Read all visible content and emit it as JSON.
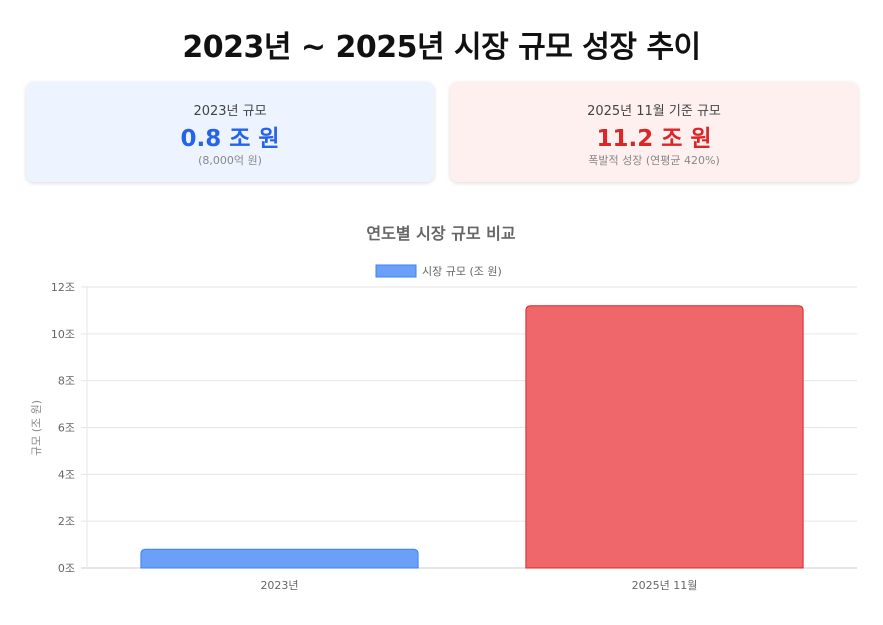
{
  "page": {
    "title": "2023년 ~ 2025년 시장 규모 성장 추이"
  },
  "cards": [
    {
      "label": "2023년 규모",
      "value": "0.8 조 원",
      "sub": "(8,000억 원)",
      "accent": "#2563eb",
      "background": "#eef4ff"
    },
    {
      "label": "2025년 11월 기준 규모",
      "value": "11.2 조 원",
      "sub": "폭발적 성장 (연평균 420%)",
      "accent": "#dc2626",
      "background": "#fff0f0"
    }
  ],
  "chart_data": {
    "type": "bar",
    "title": "연도별 시장 규모 비교",
    "categories": [
      "2023년",
      "2025년 11월"
    ],
    "series": [
      {
        "name": "시장 규모 (조 원)",
        "values": [
          0.8,
          11.2
        ]
      }
    ],
    "bar_colors": [
      "#6aa0f8",
      "#f0676b"
    ],
    "bar_border_colors": [
      "#3b82f6",
      "#dc2626"
    ],
    "legend_color": "#6aa0f8",
    "ylabel": "규모 (조 원)",
    "xlabel": "",
    "ylim": [
      0,
      12
    ],
    "yticks": [
      {
        "value": 0,
        "label": "0조"
      },
      {
        "value": 2,
        "label": "2조"
      },
      {
        "value": 4,
        "label": "4조"
      },
      {
        "value": 6,
        "label": "6조"
      },
      {
        "value": 8,
        "label": "8조"
      },
      {
        "value": 10,
        "label": "10조"
      },
      {
        "value": 12,
        "label": "12조"
      }
    ],
    "grid": true,
    "legend_position": "top"
  }
}
